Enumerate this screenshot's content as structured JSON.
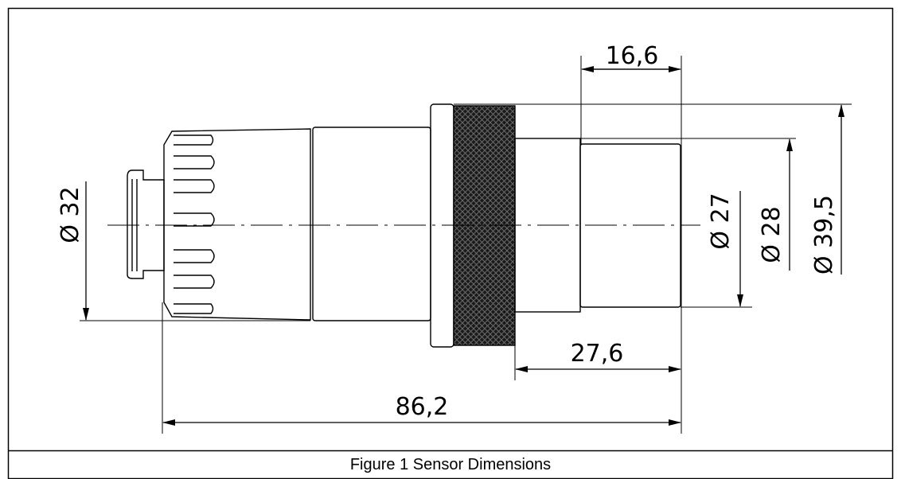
{
  "figure": {
    "caption": "Figure 1  Sensor Dimensions"
  },
  "dimensions": {
    "top_length": "16,6",
    "diameter_left": "Ø 32",
    "diameter_front": "Ø 27",
    "diameter_body": "Ø 28",
    "diameter_collar": "Ø 39,5",
    "front_length": "27,6",
    "total_length": "86,2"
  }
}
